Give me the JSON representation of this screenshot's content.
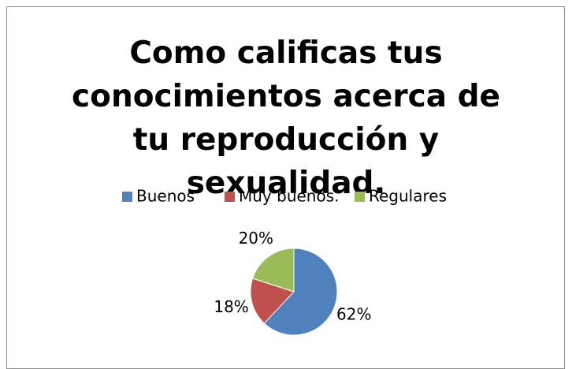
{
  "chart_data": {
    "type": "pie",
    "title": "Como calificas tus conocimientos acerca de tu reproducción y sexualidad.",
    "categories": [
      "Buenos",
      "Muy buenos.",
      "Regulares"
    ],
    "values": [
      62,
      18,
      20
    ],
    "value_labels": [
      "62%",
      "18%",
      "20%"
    ],
    "colors": [
      "#4f81bd",
      "#c0504d",
      "#9bbb59"
    ],
    "legend": "top"
  }
}
